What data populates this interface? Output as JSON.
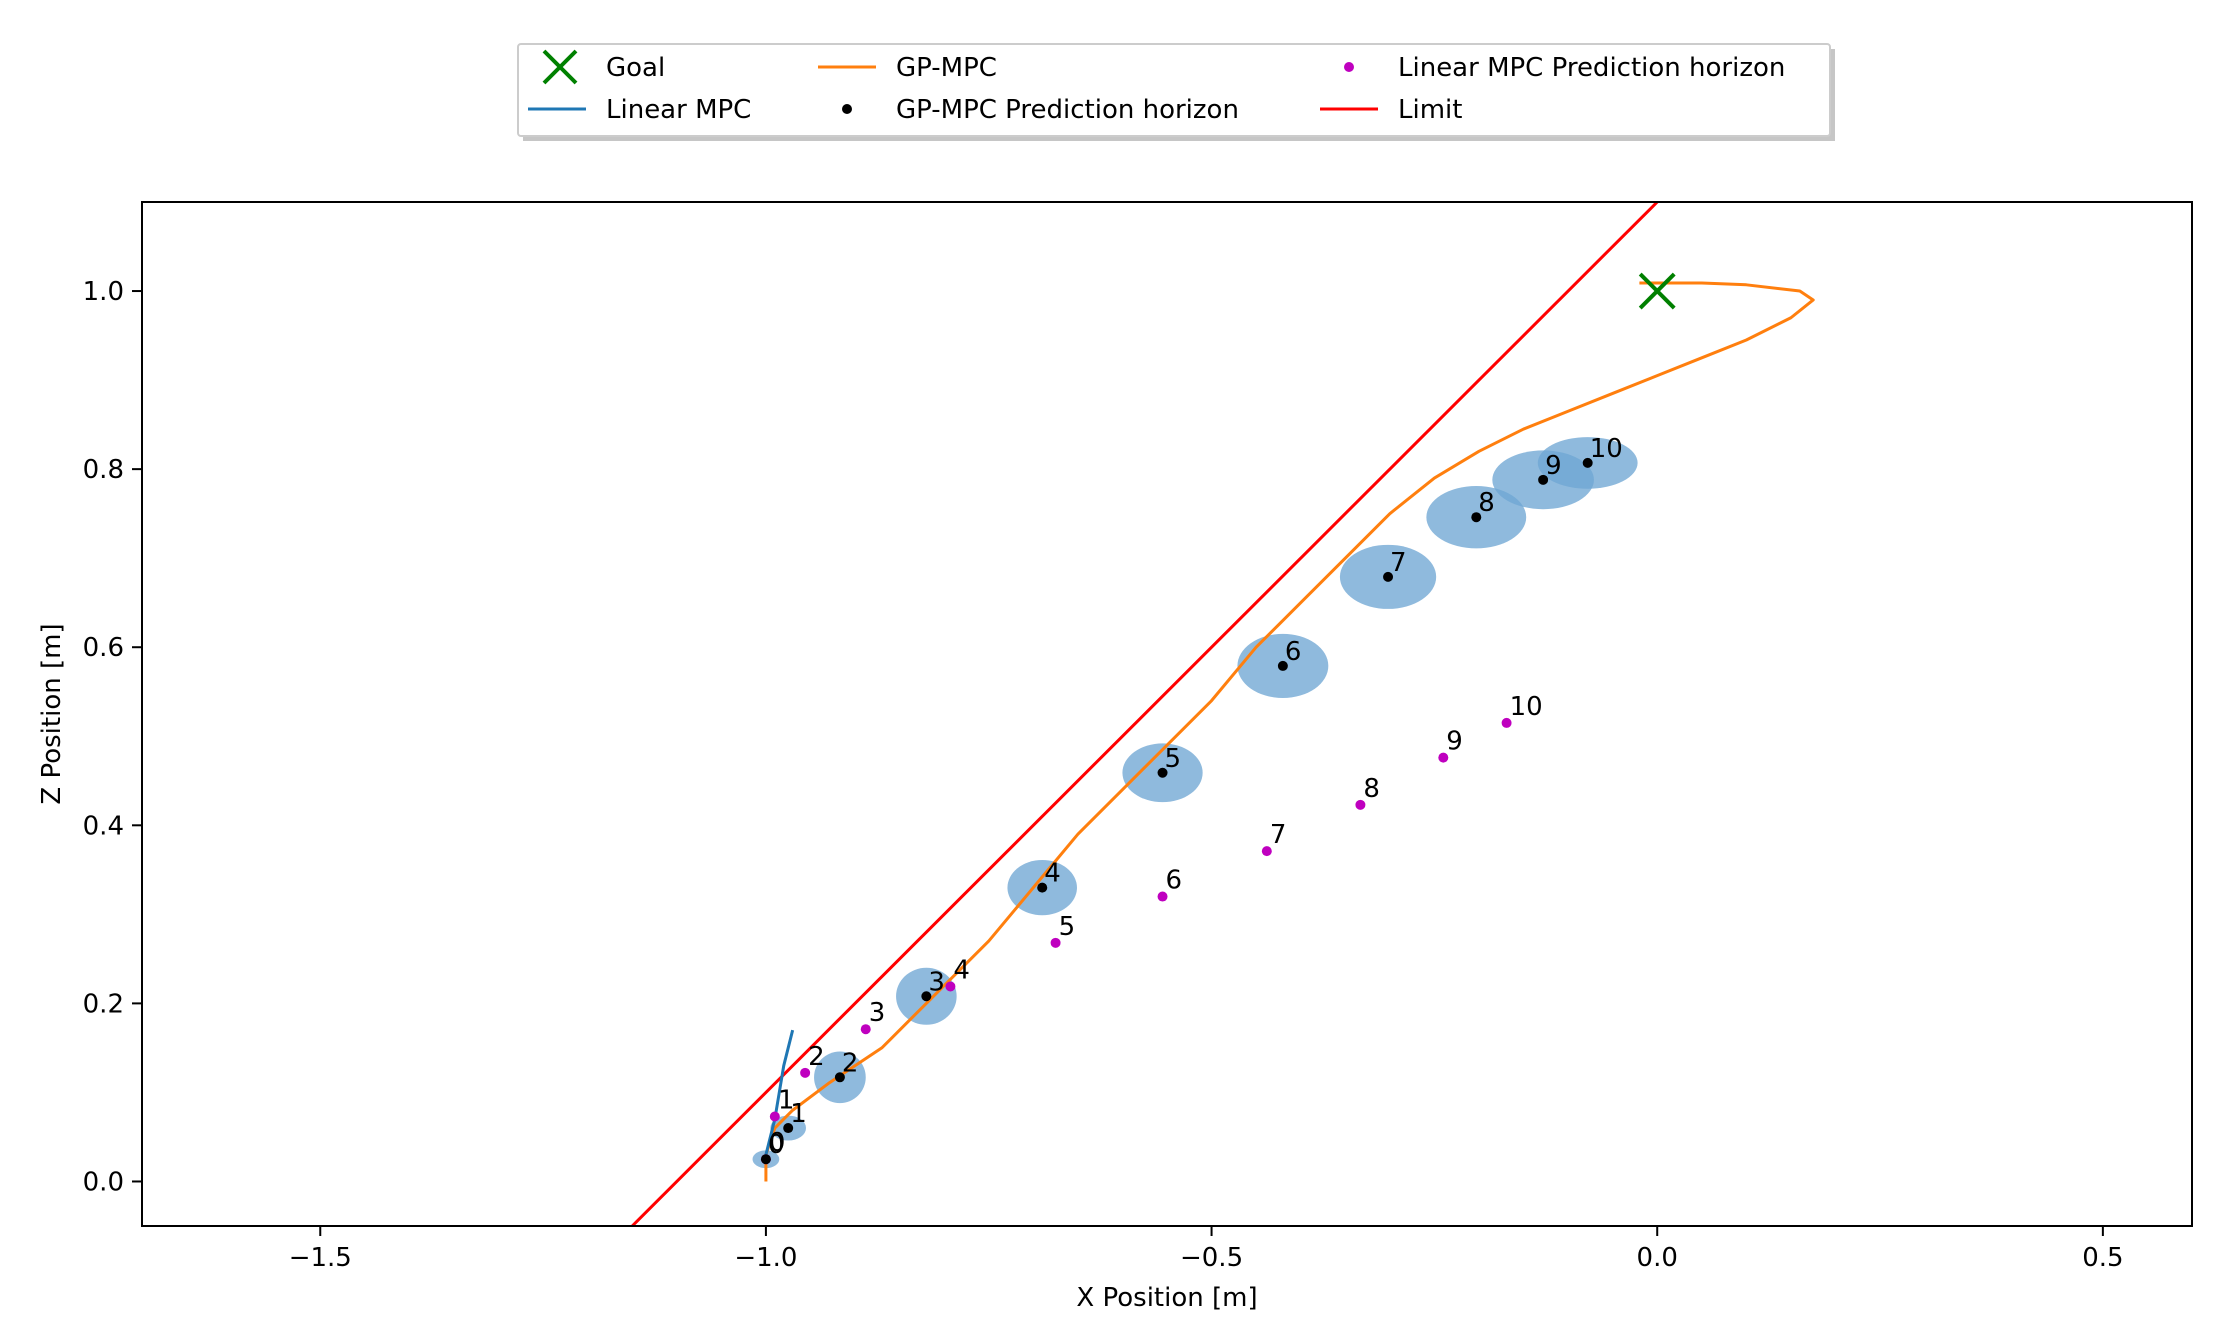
{
  "chart_data": {
    "type": "scatter",
    "xlabel": "X Position [m]",
    "ylabel": "Z Position [m]",
    "xlim": [
      -1.7,
      0.6
    ],
    "ylim": [
      -0.05,
      1.1
    ],
    "xticks": [
      -1.5,
      -1.0,
      -0.5,
      0.0,
      0.5
    ],
    "yticks": [
      0.0,
      0.2,
      0.4,
      0.6,
      0.8,
      1.0
    ],
    "xtick_labels": [
      "−1.5",
      "−1.0",
      "−0.5",
      "0.0",
      "0.5"
    ],
    "ytick_labels": [
      "0.0",
      "0.2",
      "0.4",
      "0.6",
      "0.8",
      "1.0"
    ],
    "grid": false,
    "legend_position": "top-center",
    "legend": [
      {
        "label": "Goal",
        "color": "#008000",
        "marker": "x"
      },
      {
        "label": "Linear MPC",
        "color": "#1f77b4",
        "marker": "line"
      },
      {
        "label": "GP-MPC",
        "color": "#ff7f0e",
        "marker": "line"
      },
      {
        "label": "GP-MPC Prediction horizon",
        "color": "#000000",
        "marker": "dot"
      },
      {
        "label": "Linear MPC Prediction horizon",
        "color": "#bf00bf",
        "marker": "dot"
      },
      {
        "label": "Limit",
        "color": "#ff0000",
        "marker": "line"
      }
    ],
    "goal": {
      "x": 0.0,
      "y": 1.0,
      "color": "#008000"
    },
    "limit_line": {
      "x": [
        -1.15,
        0.0
      ],
      "y": [
        -0.05,
        1.1
      ],
      "color": "#ff0000"
    },
    "linear_mpc": {
      "color": "#1f77b4",
      "x": [
        -1.0,
        -0.99,
        -0.985,
        -0.98,
        -0.97
      ],
      "y": [
        0.03,
        0.07,
        0.1,
        0.13,
        0.17
      ]
    },
    "gp_mpc": {
      "color": "#ff7f0e",
      "x": [
        -1.0,
        -1.0,
        -0.99,
        -0.97,
        -0.93,
        -0.87,
        -0.84,
        -0.8,
        -0.75,
        -0.7,
        -0.65,
        -0.6,
        -0.55,
        -0.5,
        -0.45,
        -0.4,
        -0.35,
        -0.3,
        -0.25,
        -0.2,
        -0.15,
        -0.1,
        -0.05,
        0.0,
        0.05,
        0.1,
        0.15,
        0.175,
        0.16,
        0.1,
        0.05,
        -0.02
      ],
      "y": [
        0.0,
        0.03,
        0.06,
        0.08,
        0.11,
        0.15,
        0.18,
        0.22,
        0.27,
        0.33,
        0.39,
        0.44,
        0.49,
        0.54,
        0.6,
        0.65,
        0.7,
        0.75,
        0.79,
        0.82,
        0.845,
        0.865,
        0.885,
        0.905,
        0.925,
        0.945,
        0.97,
        0.99,
        1.0,
        1.007,
        1.009,
        1.009
      ]
    },
    "gp_horizon": {
      "color": "#000000",
      "ellipse_color": "#6fa7d3",
      "points": [
        {
          "label": "0",
          "x": -1.0,
          "y": 0.025,
          "w": 0.03,
          "h": 0.02
        },
        {
          "label": "1",
          "x": -0.975,
          "y": 0.06,
          "w": 0.04,
          "h": 0.028
        },
        {
          "label": "2",
          "x": -0.917,
          "y": 0.117,
          "w": 0.058,
          "h": 0.058
        },
        {
          "label": "3",
          "x": -0.82,
          "y": 0.208,
          "w": 0.068,
          "h": 0.064
        },
        {
          "label": "4",
          "x": -0.69,
          "y": 0.33,
          "w": 0.078,
          "h": 0.062
        },
        {
          "label": "5",
          "x": -0.555,
          "y": 0.459,
          "w": 0.09,
          "h": 0.066
        },
        {
          "label": "6",
          "x": -0.42,
          "y": 0.579,
          "w": 0.102,
          "h": 0.072
        },
        {
          "label": "7",
          "x": -0.302,
          "y": 0.679,
          "w": 0.108,
          "h": 0.072
        },
        {
          "label": "8",
          "x": -0.203,
          "y": 0.746,
          "w": 0.112,
          "h": 0.07
        },
        {
          "label": "9",
          "x": -0.128,
          "y": 0.788,
          "w": 0.114,
          "h": 0.066
        },
        {
          "label": "10",
          "x": -0.078,
          "y": 0.807,
          "w": 0.112,
          "h": 0.058
        }
      ]
    },
    "linear_horizon": {
      "color": "#bf00bf",
      "points": [
        {
          "label": "0",
          "x": -1.0,
          "y": 0.025
        },
        {
          "label": "1",
          "x": -0.99,
          "y": 0.073
        },
        {
          "label": "2",
          "x": -0.956,
          "y": 0.122
        },
        {
          "label": "3",
          "x": -0.888,
          "y": 0.171
        },
        {
          "label": "4",
          "x": -0.793,
          "y": 0.219
        },
        {
          "label": "5",
          "x": -0.675,
          "y": 0.268
        },
        {
          "label": "6",
          "x": -0.555,
          "y": 0.32
        },
        {
          "label": "7",
          "x": -0.438,
          "y": 0.371
        },
        {
          "label": "8",
          "x": -0.333,
          "y": 0.423
        },
        {
          "label": "9",
          "x": -0.24,
          "y": 0.476
        },
        {
          "label": "10",
          "x": -0.169,
          "y": 0.515
        }
      ]
    }
  }
}
